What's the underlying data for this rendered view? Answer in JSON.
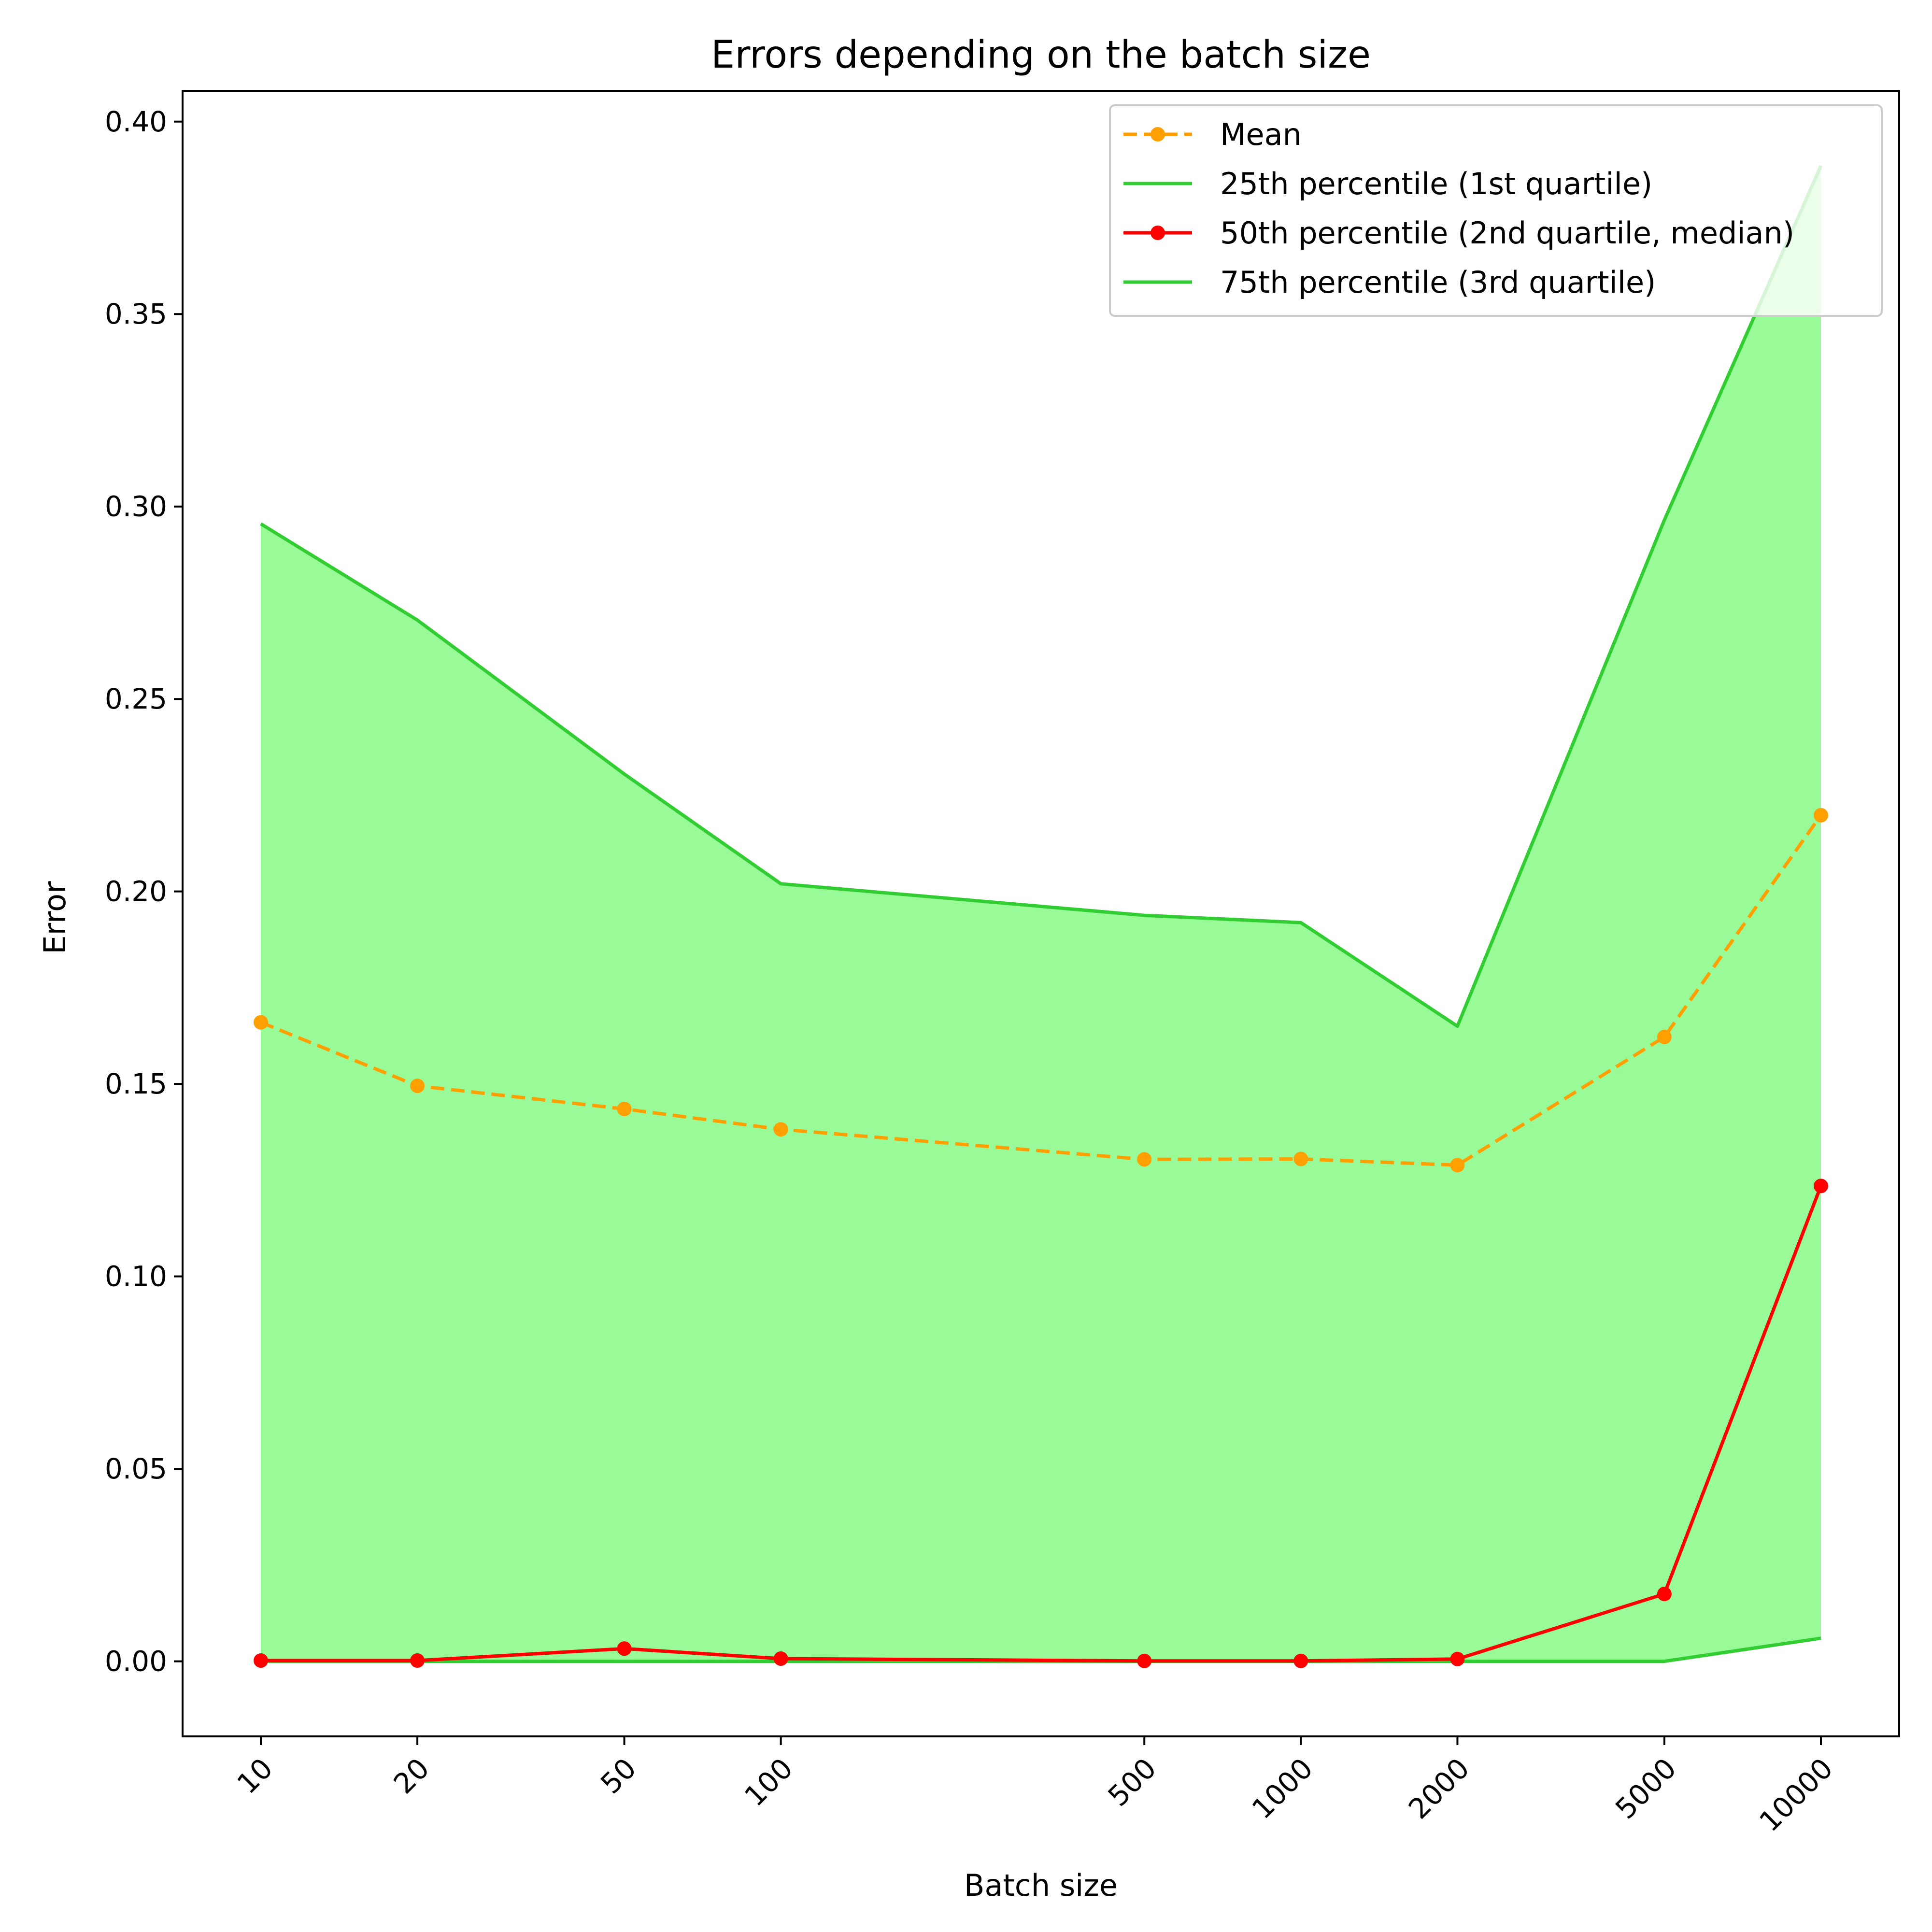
{
  "chart_data": {
    "type": "line",
    "title": "Errors depending on the batch size",
    "xlabel": "Batch size",
    "ylabel": "Error",
    "xscale": "log",
    "x": [
      10,
      20,
      50,
      100,
      500,
      1000,
      2000,
      5000,
      10000
    ],
    "x_tick_labels": [
      "10",
      "20",
      "50",
      "100",
      "500",
      "1000",
      "2000",
      "5000",
      "10000"
    ],
    "y_ticks": [
      0.0,
      0.05,
      0.1,
      0.15,
      0.2,
      0.25,
      0.3,
      0.35,
      0.4
    ],
    "y_tick_labels": [
      "0.00",
      "0.05",
      "0.10",
      "0.15",
      "0.20",
      "0.25",
      "0.30",
      "0.35",
      "0.40"
    ],
    "ylim": [
      -0.0195,
      0.408
    ],
    "grid": false,
    "legend_position": "top-right",
    "band": {
      "between": [
        "25th percentile (1st quartile)",
        "75th percentile (3rd quartile)"
      ],
      "color": "#98fb98"
    },
    "series": [
      {
        "name": "Mean",
        "style": "dashed",
        "marker": "circle",
        "color": "#ff9f00",
        "values": [
          0.166,
          0.1495,
          0.1435,
          0.1382,
          0.1304,
          0.1305,
          0.1289,
          0.1622,
          0.2198
        ]
      },
      {
        "name": "25th percentile (1st quartile)",
        "style": "solid",
        "marker": "none",
        "color": "#32cd32",
        "values": [
          0.0,
          0.0,
          0.0,
          0.0,
          0.0,
          0.0,
          0.0,
          0.0,
          0.006
        ]
      },
      {
        "name": "50th percentile (2nd quartile, median)",
        "style": "solid",
        "marker": "circle",
        "color": "#ff0000",
        "values": [
          0.0002,
          0.0002,
          0.0033,
          0.0007,
          0.0001,
          0.0001,
          0.0006,
          0.0175,
          0.1235
        ]
      },
      {
        "name": "75th percentile (3rd quartile)",
        "style": "solid",
        "marker": "none",
        "color": "#32cd32",
        "values": [
          0.2955,
          0.2705,
          0.2305,
          0.202,
          0.1938,
          0.1919,
          0.165,
          0.2965,
          0.3885
        ]
      }
    ]
  }
}
